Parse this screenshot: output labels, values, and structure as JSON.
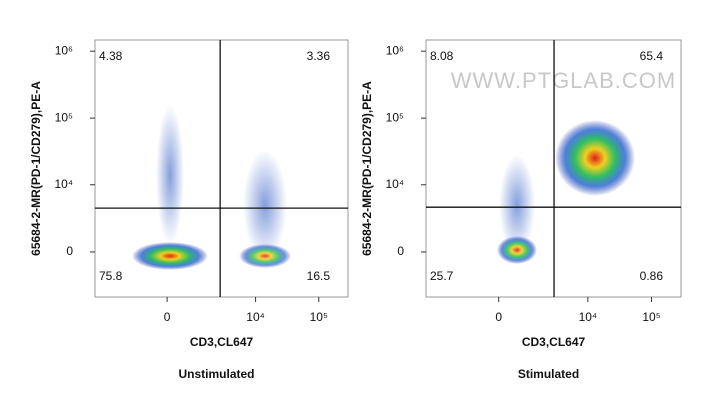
{
  "chart_data": [
    {
      "type": "quadrant",
      "x_label": "CD3,CL647",
      "y_label": "65684-2-MR(PD-1/CD279),PE-A",
      "caption": "Unstimulated",
      "quadrant_labels": [
        "top-left",
        "top-right",
        "bottom-left",
        "bottom-right"
      ],
      "values": [
        4.38,
        3.36,
        75.8,
        16.5
      ],
      "xlim": [
        -5500,
        290000
      ],
      "ylim": [
        -4500,
        1470000
      ],
      "xticks": [
        0,
        {
          "value": 10000,
          "label": "10⁴"
        },
        {
          "value": 100000,
          "label": "10⁵"
        }
      ],
      "yticks": [
        0,
        {
          "value": 10000,
          "label": "10⁴"
        },
        {
          "value": 100000,
          "label": "10⁵"
        },
        {
          "value": 1000000,
          "label": "10⁶"
        }
      ],
      "gate_x": 2700,
      "gate_y": 4300,
      "scale": "biexponential"
    },
    {
      "type": "quadrant",
      "x_label": "CD3,CL647",
      "y_label": "65684-2-MR(PD-1/CD279),PE-A",
      "caption": "Stimulated",
      "watermark": "WWW.PTGLAB.COM",
      "quadrant_labels": [
        "top-left",
        "top-right",
        "bottom-left",
        "bottom-right"
      ],
      "values": [
        8.08,
        65.4,
        25.7,
        0.86
      ],
      "xlim": [
        -5500,
        290000
      ],
      "ylim": [
        -4500,
        1470000
      ],
      "xticks": [
        0,
        {
          "value": 10000,
          "label": "10⁴"
        },
        {
          "value": 100000,
          "label": "10⁵"
        }
      ],
      "yticks": [
        0,
        {
          "value": 10000,
          "label": "10⁴"
        },
        {
          "value": 100000,
          "label": "10⁵"
        },
        {
          "value": 1000000,
          "label": "10⁶"
        }
      ],
      "gate_x": 2900,
      "gate_y": 4450,
      "scale": "biexponential"
    }
  ]
}
